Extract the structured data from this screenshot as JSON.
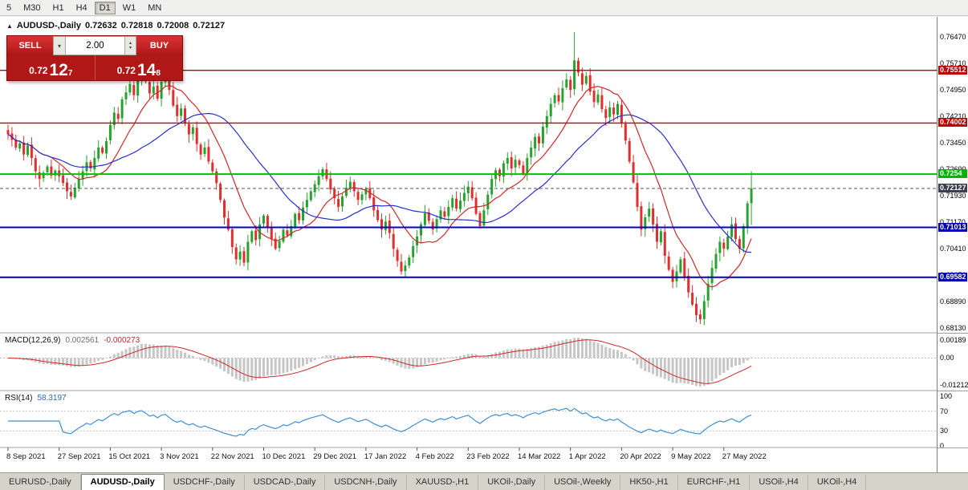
{
  "toolbar": {
    "timeframes": [
      {
        "label": "5",
        "active": false
      },
      {
        "label": "M30",
        "active": false
      },
      {
        "label": "H1",
        "active": false
      },
      {
        "label": "H4",
        "active": false
      },
      {
        "label": "D1",
        "active": true
      },
      {
        "label": "W1",
        "active": false
      },
      {
        "label": "MN",
        "active": false
      }
    ]
  },
  "chart_header": {
    "symbol": "AUDUSD-,Daily",
    "open": "0.72632",
    "high": "0.72818",
    "low": "0.72008",
    "close": "0.72127"
  },
  "trade_panel": {
    "sell_label": "SELL",
    "buy_label": "BUY",
    "volume": "2.00",
    "sell_price_prefix": "0.72",
    "sell_price_big": "12",
    "sell_price_sup": "7",
    "buy_price_prefix": "0.72",
    "buy_price_big": "14",
    "buy_price_sup": "8"
  },
  "indicators": {
    "macd": {
      "title": "MACD(12,26,9)",
      "main_value": "0.002561",
      "signal_value": "-0.000273",
      "axis_top": "0.00189",
      "axis_zero": "0.00",
      "axis_bottom": "-0.01212"
    },
    "rsi": {
      "title": "RSI(14)",
      "value": "58.3197",
      "axis": [
        "100",
        "70",
        "30",
        "0"
      ]
    }
  },
  "price_axis": {
    "ticks": [
      "0.76470",
      "0.75710",
      "0.74950",
      "0.74210",
      "0.73450",
      "0.72690",
      "0.71930",
      "0.71170",
      "0.70410",
      "0.69650",
      "0.68890",
      "0.68130"
    ],
    "line_labels": [
      {
        "text": "0.75512",
        "price": 0.75512,
        "color": "#c00000"
      },
      {
        "text": "0.74002",
        "price": 0.74002,
        "color": "#c00000"
      },
      {
        "text": "0.7254",
        "price": 0.7254,
        "color": "#00b400"
      },
      {
        "text": "0.72127",
        "price": 0.72127,
        "color": "#3c3c50"
      },
      {
        "text": "0.71013",
        "price": 0.71013,
        "color": "#0000b4"
      },
      {
        "text": "0.69582",
        "price": 0.69582,
        "color": "#0000b4"
      }
    ]
  },
  "tabs": [
    {
      "label": "EURUSD-,Daily",
      "active": false
    },
    {
      "label": "AUDUSD-,Daily",
      "active": true
    },
    {
      "label": "USDCHF-,Daily",
      "active": false
    },
    {
      "label": "USDCAD-,Daily",
      "active": false
    },
    {
      "label": "USDCNH-,Daily",
      "active": false
    },
    {
      "label": "XAUUSD-,H1",
      "active": false
    },
    {
      "label": "UKOil-,Daily",
      "active": false
    },
    {
      "label": "USOil-,Weekly",
      "active": false
    },
    {
      "label": "HK50-,H1",
      "active": false
    },
    {
      "label": "EURCHF-,H1",
      "active": false
    },
    {
      "label": "USOil-,H4",
      "active": false
    },
    {
      "label": "UKOil-,H4",
      "active": false
    }
  ],
  "chart_data": {
    "type": "candlestick",
    "symbol": "AUDUSD",
    "timeframe": "Daily",
    "current": {
      "open": 0.72632,
      "high": 0.72818,
      "low": 0.72008,
      "close": 0.72127
    },
    "price_range": [
      0.6813,
      0.7647
    ],
    "date_labels": [
      "8 Sep 2021",
      "27 Sep 2021",
      "15 Oct 2021",
      "3 Nov 2021",
      "22 Nov 2021",
      "10 Dec 2021",
      "29 Dec 2021",
      "17 Jan 2022",
      "4 Feb 2022",
      "23 Feb 2022",
      "14 Mar 2022",
      "1 Apr 2022",
      "20 Apr 2022",
      "9 May 2022",
      "27 May 2022"
    ],
    "candles_per_label": 13,
    "closes": [
      0.7368,
      0.7352,
      0.733,
      0.7342,
      0.731,
      0.7336,
      0.73,
      0.7262,
      0.724,
      0.7258,
      0.7276,
      0.725,
      0.7264,
      0.7248,
      0.7228,
      0.7205,
      0.719,
      0.7215,
      0.724,
      0.7262,
      0.7288,
      0.727,
      0.73,
      0.733,
      0.7315,
      0.7348,
      0.7395,
      0.743,
      0.7412,
      0.7468,
      0.7488,
      0.7512,
      0.748,
      0.753,
      0.7548,
      0.752,
      0.7485,
      0.7505,
      0.747,
      0.7518,
      0.7538,
      0.7495,
      0.745,
      0.742,
      0.7442,
      0.74,
      0.7368,
      0.7388,
      0.734,
      0.731,
      0.733,
      0.729,
      0.7262,
      0.7228,
      0.718,
      0.713,
      0.7095,
      0.7045,
      0.701,
      0.7032,
      0.7,
      0.706,
      0.709,
      0.7065,
      0.711,
      0.7135,
      0.71,
      0.7068,
      0.704,
      0.7062,
      0.7095,
      0.7078,
      0.7105,
      0.714,
      0.7122,
      0.7158,
      0.718,
      0.7205,
      0.7225,
      0.7248,
      0.7268,
      0.724,
      0.721,
      0.7185,
      0.716,
      0.719,
      0.7215,
      0.7232,
      0.7205,
      0.718,
      0.7196,
      0.7212,
      0.7185,
      0.715,
      0.7122,
      0.7095,
      0.7118,
      0.7085,
      0.704,
      0.7005,
      0.6975,
      0.6992,
      0.7015,
      0.7048,
      0.7075,
      0.711,
      0.7142,
      0.712,
      0.7095,
      0.7125,
      0.715,
      0.7132,
      0.716,
      0.7185,
      0.7155,
      0.7178,
      0.72,
      0.7218,
      0.7185,
      0.714,
      0.7105,
      0.715,
      0.7195,
      0.724,
      0.7265,
      0.7248,
      0.7285,
      0.73,
      0.727,
      0.7295,
      0.728,
      0.7255,
      0.73,
      0.733,
      0.736,
      0.7342,
      0.739,
      0.742,
      0.7455,
      0.748,
      0.7462,
      0.75,
      0.7525,
      0.7495,
      0.758,
      0.7545,
      0.751,
      0.7535,
      0.749,
      0.746,
      0.7482,
      0.744,
      0.7415,
      0.7445,
      0.7425,
      0.7455,
      0.74,
      0.735,
      0.729,
      0.723,
      0.716,
      0.7095,
      0.713,
      0.7155,
      0.711,
      0.706,
      0.709,
      0.702,
      0.698,
      0.6945,
      0.6975,
      0.701,
      0.696,
      0.6915,
      0.688,
      0.685,
      0.6838,
      0.689,
      0.694,
      0.6985,
      0.7025,
      0.706,
      0.704,
      0.7075,
      0.711,
      0.7068,
      0.704,
      0.7105,
      0.717,
      0.72127
    ],
    "wick_overrides": {
      "144": {
        "high": 0.7661
      },
      "189": {
        "high": 0.7262,
        "low": 0.7108
      }
    },
    "hlines": [
      {
        "name": "resistance-1",
        "price": 0.75512,
        "color": "#c00000",
        "width": 1.4,
        "style": "solid"
      },
      {
        "name": "resistance-2",
        "price": 0.74002,
        "color": "#c00000",
        "width": 1.4,
        "style": "solid"
      },
      {
        "name": "resistance-green",
        "price": 0.7254,
        "color": "#00c000",
        "width": 2,
        "style": "solid"
      },
      {
        "name": "current-price",
        "price": 0.72127,
        "color": "#5a5a5a",
        "width": 1,
        "style": "dash"
      },
      {
        "name": "support-1",
        "price": 0.71013,
        "color": "#0000c0",
        "width": 2,
        "style": "solid"
      },
      {
        "name": "support-2",
        "price": 0.69582,
        "color": "#0000c0",
        "width": 2,
        "style": "solid"
      }
    ],
    "ma": {
      "fast_period": 12,
      "fast_color": "#d02828",
      "slow_period": 30,
      "slow_color": "#2830c8"
    },
    "macd": {
      "fast": 12,
      "slow": 26,
      "signal": 9,
      "hist_color": "#c6c6c6",
      "signal_color": "#d02828",
      "current_main": 0.002561,
      "current_signal": -0.000273
    },
    "rsi": {
      "period": 14,
      "color": "#3f8fce",
      "current": 58.3197,
      "levels": [
        70,
        30
      ]
    },
    "colors": {
      "up": "#27a22e",
      "down": "#df2f2f",
      "background": "#ffffff"
    }
  }
}
